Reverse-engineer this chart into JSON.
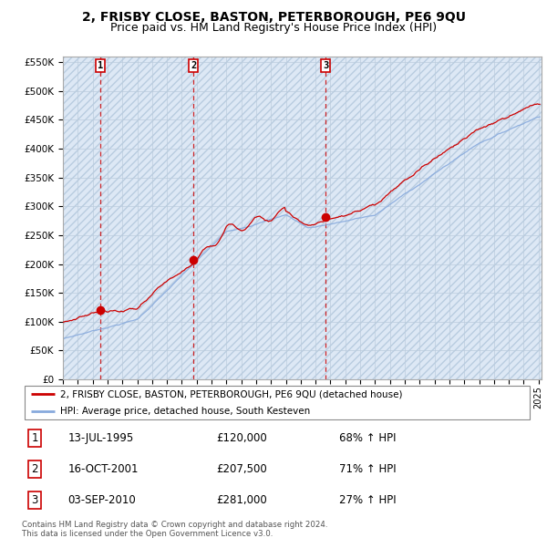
{
  "title": "2, FRISBY CLOSE, BASTON, PETERBOROUGH, PE6 9QU",
  "subtitle": "Price paid vs. HM Land Registry's House Price Index (HPI)",
  "sale_year_nums": [
    1995.537,
    2001.792,
    2010.671
  ],
  "sale_prices": [
    120000,
    207500,
    281000
  ],
  "sale_labels": [
    "1",
    "2",
    "3"
  ],
  "sale_pct": [
    "68% ↑ HPI",
    "71% ↑ HPI",
    "27% ↑ HPI"
  ],
  "sale_dates_str": [
    "13-JUL-1995",
    "16-OCT-2001",
    "03-SEP-2010"
  ],
  "sale_prices_str": [
    "£120,000",
    "£207,500",
    "£281,000"
  ],
  "red_line_color": "#cc0000",
  "blue_line_color": "#88aadd",
  "dashed_line_color": "#cc0000",
  "marker_color": "#cc0000",
  "background_color": "#dde8f5",
  "grid_color": "#bbccdd",
  "hatch_color": "#c8d8ea",
  "ylim": [
    0,
    560000
  ],
  "yticks": [
    0,
    50000,
    100000,
    150000,
    200000,
    250000,
    300000,
    350000,
    400000,
    450000,
    500000,
    550000
  ],
  "xmin": 1993.0,
  "xmax": 2025.2,
  "legend_label_red": "2, FRISBY CLOSE, BASTON, PETERBOROUGH, PE6 9QU (detached house)",
  "legend_label_blue": "HPI: Average price, detached house, South Kesteven",
  "footnote": "Contains HM Land Registry data © Crown copyright and database right 2024.\nThis data is licensed under the Open Government Licence v3.0.",
  "title_fontsize": 10,
  "subtitle_fontsize": 9
}
